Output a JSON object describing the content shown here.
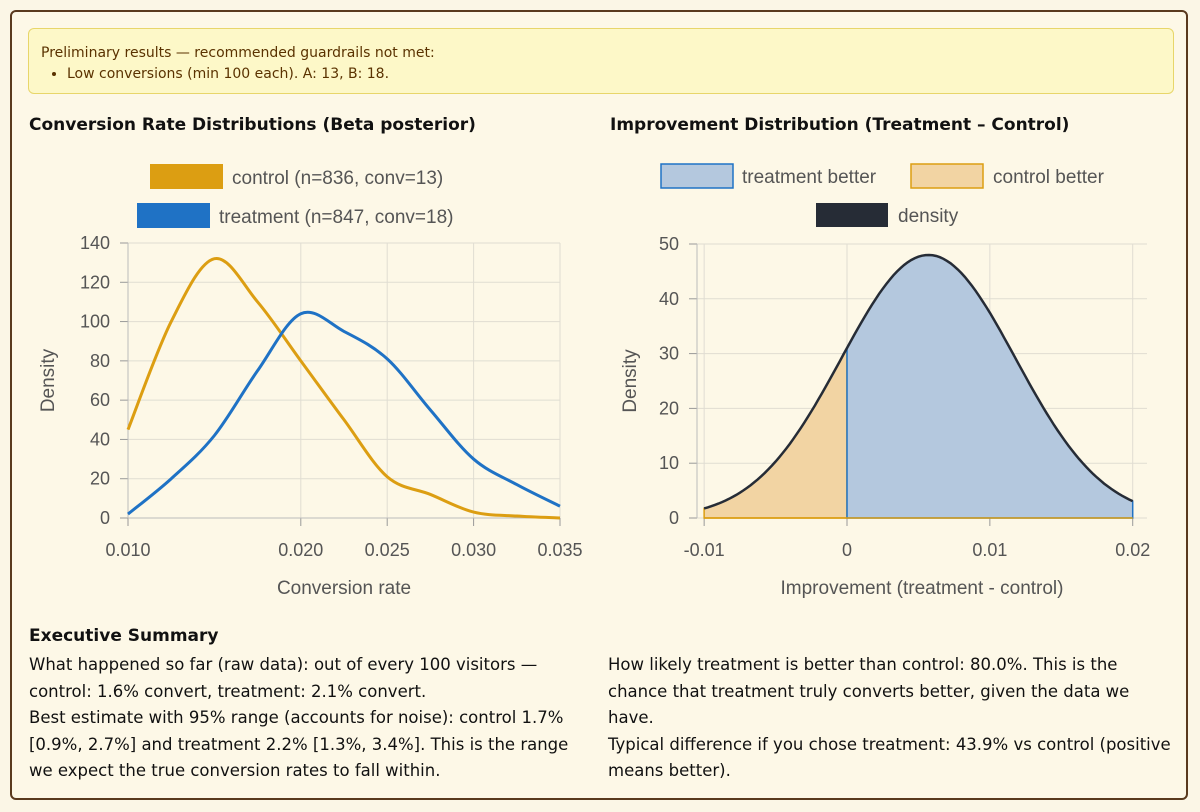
{
  "alert": {
    "title": "Preliminary results — recommended guardrails not met:",
    "items": [
      "Low conversions (min 100 each). A: 13, B: 18."
    ]
  },
  "left_chart": {
    "heading": "Conversion Rate Distributions (Beta posterior)"
  },
  "right_chart": {
    "heading": "Improvement Distribution (Treatment – Control)"
  },
  "chart_data": [
    {
      "type": "line",
      "title": "Conversion Rate Distributions (Beta posterior)",
      "xlabel": "Conversion rate",
      "ylabel": "Density",
      "xlim": [
        0.01,
        0.035
      ],
      "ylim": [
        0,
        140
      ],
      "x_ticks": [
        "0.010",
        "0.020",
        "0.025",
        "0.030",
        "0.035"
      ],
      "y_ticks": [
        "0",
        "20",
        "40",
        "60",
        "80",
        "100",
        "120",
        "140"
      ],
      "grid": true,
      "legend": "top-center",
      "series": [
        {
          "name": "control (n=836, conv=13)",
          "color": "#dc9e12",
          "points": [
            [
              0.01,
              45
            ],
            [
              0.0125,
              100
            ],
            [
              0.015,
              132
            ],
            [
              0.0175,
              110
            ],
            [
              0.02,
              80
            ],
            [
              0.0225,
              50
            ],
            [
              0.025,
              21
            ],
            [
              0.0275,
              12
            ],
            [
              0.03,
              3
            ],
            [
              0.0325,
              1
            ],
            [
              0.035,
              0
            ]
          ]
        },
        {
          "name": "treatment (n=847, conv=18)",
          "color": "#1f72c5",
          "points": [
            [
              0.01,
              2
            ],
            [
              0.0125,
              20
            ],
            [
              0.015,
              42
            ],
            [
              0.0175,
              75
            ],
            [
              0.02,
              104
            ],
            [
              0.0225,
              95
            ],
            [
              0.025,
              81
            ],
            [
              0.0275,
              55
            ],
            [
              0.03,
              30
            ],
            [
              0.0325,
              17
            ],
            [
              0.035,
              6
            ]
          ]
        }
      ]
    },
    {
      "type": "area",
      "title": "Improvement Distribution (Treatment – Control)",
      "xlabel": "Improvement (treatment - control)",
      "ylabel": "Density",
      "xlim": [
        -0.0105,
        0.021
      ],
      "ylim": [
        0,
        50
      ],
      "x_ticks": [
        "-0.01",
        "0",
        "0.01",
        "0.02"
      ],
      "y_ticks": [
        "0",
        "10",
        "20",
        "30",
        "40",
        "50"
      ],
      "grid": true,
      "legend": "top-center",
      "density_peak_x": 0.0057,
      "density_peak_y": 48,
      "density_sd": 0.0061,
      "series": [
        {
          "name": "treatment better",
          "color": "#b4c8de",
          "edge": "#1f72c5"
        },
        {
          "name": "control better",
          "color": "#f2d4a3",
          "edge": "#dc9e12"
        },
        {
          "name": "density",
          "color": "#262c36"
        }
      ]
    }
  ],
  "summary": {
    "title": "Executive Summary",
    "left": [
      "What happened so far (raw data): out of every 100 visitors — control: 1.6% convert, treatment: 2.1% convert.",
      "Best estimate with 95% range (accounts for noise): control 1.7% [0.9%, 2.7%] and treatment 2.2% [1.3%, 3.4%]. This is the range we expect the true conversion rates to fall within."
    ],
    "right": [
      "How likely treatment is better than control: 80.0%. This is the chance that treatment truly converts better, given the data we have.",
      "Typical difference if you chose treatment: 43.9% vs control (positive means better)."
    ]
  }
}
